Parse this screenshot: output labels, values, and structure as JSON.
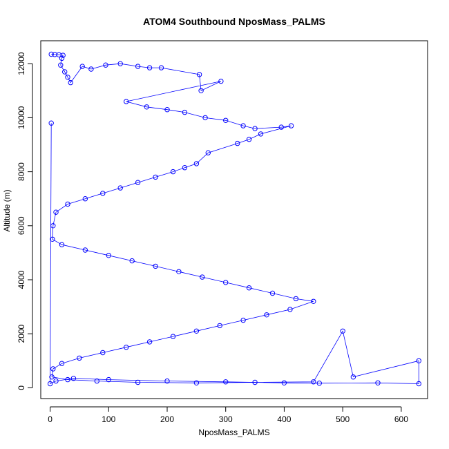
{
  "chart_data": {
    "type": "line",
    "title": "ATOM4 Southbound NposMass_PALMS",
    "xlabel": "NposMass_PALMS",
    "ylabel": "Altitude (m)",
    "xlim": [
      -16,
      645
    ],
    "ylim": [
      -400,
      12850
    ],
    "xticks": [
      0,
      100,
      200,
      300,
      400,
      500,
      600
    ],
    "yticks": [
      0,
      2000,
      4000,
      6000,
      8000,
      10000,
      12000
    ],
    "grid": false,
    "legend": "none",
    "marker": "open-circle",
    "series": [
      {
        "values_note": "x = NposMass_PALMS, y = Altitude (m)",
        "points": [
          [
            2,
            12350
          ],
          [
            8,
            12340
          ],
          [
            15,
            12330
          ],
          [
            22,
            12310
          ],
          [
            20,
            12200
          ],
          [
            18,
            11950
          ],
          [
            25,
            11700
          ],
          [
            30,
            11500
          ],
          [
            35,
            11300
          ],
          [
            55,
            11900
          ],
          [
            70,
            11800
          ],
          [
            95,
            11950
          ],
          [
            120,
            12000
          ],
          [
            150,
            11900
          ],
          [
            170,
            11850
          ],
          [
            190,
            11850
          ],
          [
            255,
            11600
          ],
          [
            258,
            11000
          ],
          [
            292,
            11350
          ],
          [
            130,
            10600
          ],
          [
            165,
            10400
          ],
          [
            200,
            10300
          ],
          [
            230,
            10200
          ],
          [
            265,
            10000
          ],
          [
            300,
            9900
          ],
          [
            330,
            9700
          ],
          [
            350,
            9600
          ],
          [
            395,
            9650
          ],
          [
            412,
            9700
          ],
          [
            360,
            9400
          ],
          [
            340,
            9200
          ],
          [
            320,
            9050
          ],
          [
            270,
            8700
          ],
          [
            250,
            8300
          ],
          [
            230,
            8150
          ],
          [
            210,
            8000
          ],
          [
            180,
            7800
          ],
          [
            150,
            7600
          ],
          [
            120,
            7400
          ],
          [
            90,
            7200
          ],
          [
            60,
            7000
          ],
          [
            30,
            6800
          ],
          [
            10,
            6500
          ],
          [
            5,
            6000
          ],
          [
            4,
            5500
          ],
          [
            20,
            5300
          ],
          [
            60,
            5100
          ],
          [
            100,
            4900
          ],
          [
            140,
            4700
          ],
          [
            180,
            4500
          ],
          [
            220,
            4300
          ],
          [
            260,
            4100
          ],
          [
            300,
            3900
          ],
          [
            340,
            3700
          ],
          [
            380,
            3500
          ],
          [
            420,
            3300
          ],
          [
            450,
            3200
          ],
          [
            410,
            2900
          ],
          [
            370,
            2700
          ],
          [
            330,
            2500
          ],
          [
            290,
            2300
          ],
          [
            250,
            2100
          ],
          [
            210,
            1900
          ],
          [
            170,
            1700
          ],
          [
            130,
            1500
          ],
          [
            90,
            1300
          ],
          [
            50,
            1100
          ],
          [
            20,
            900
          ],
          [
            5,
            700
          ],
          [
            3,
            400
          ],
          [
            30,
            300
          ],
          [
            80,
            250
          ],
          [
            150,
            200
          ],
          [
            250,
            180
          ],
          [
            350,
            200
          ],
          [
            450,
            220
          ],
          [
            500,
            2100
          ],
          [
            518,
            400
          ],
          [
            630,
            1000
          ],
          [
            630,
            150
          ],
          [
            560,
            180
          ],
          [
            460,
            170
          ],
          [
            400,
            180
          ],
          [
            300,
            220
          ],
          [
            200,
            250
          ],
          [
            100,
            300
          ],
          [
            40,
            350
          ],
          [
            10,
            250
          ],
          [
            0,
            150
          ],
          [
            2,
            9800
          ]
        ]
      }
    ]
  }
}
